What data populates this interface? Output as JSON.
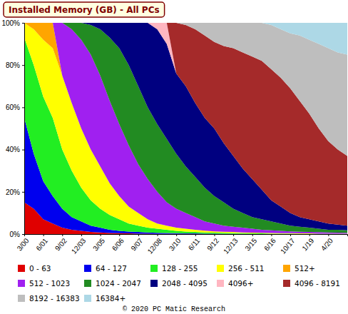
{
  "chart_data": {
    "type": "area",
    "stacked": true,
    "title": "Installed Memory (GB) - All PCs",
    "annotations": [
      "© 2020 PC Matic Research"
    ],
    "legend": "bottom",
    "categories": [
      "3/00",
      null,
      "6/01",
      null,
      "9/02",
      null,
      "12/03",
      null,
      "3/05",
      null,
      "6/06",
      null,
      "9/07",
      null,
      "12/08",
      null,
      "3/10",
      null,
      "6/11",
      null,
      "9/12",
      null,
      "12/13",
      null,
      "3/15",
      null,
      "6/16",
      null,
      "10/17",
      null,
      "1/19",
      null,
      "4/20",
      null,
      null
    ],
    "ylim": [
      0,
      100
    ],
    "yticks": [
      {
        "value": 0,
        "label": "0%"
      },
      {
        "value": 20,
        "label": "20%"
      },
      {
        "value": 40,
        "label": "40%"
      },
      {
        "value": 60,
        "label": "60%"
      },
      {
        "value": 80,
        "label": "80%"
      },
      {
        "value": 100,
        "label": "100%"
      }
    ],
    "series": [
      {
        "name": "0 - 63",
        "color": "#e00000",
        "values": [
          15,
          12,
          7,
          5,
          3,
          2,
          1.5,
          1,
          0.8,
          0.5,
          0.4,
          0.3,
          0.2,
          0.2,
          0.1,
          0.1,
          0.1,
          0.1,
          0.1,
          0,
          0,
          0,
          0,
          0,
          0,
          0,
          0,
          0,
          0,
          0,
          0,
          0,
          0,
          0,
          0
        ]
      },
      {
        "name": "64 - 127",
        "color": "#0000ee",
        "values": [
          40,
          26,
          18,
          13,
          9,
          6,
          4.5,
          3,
          2.2,
          1.5,
          1.1,
          0.9,
          0.8,
          0.6,
          0.5,
          0.4,
          0.3,
          0.2,
          0.2,
          0.2,
          0.2,
          0.1,
          0.1,
          0.1,
          0.1,
          0,
          0,
          0,
          0,
          0,
          0,
          0,
          0,
          0,
          0
        ]
      },
      {
        "name": "128 - 255",
        "color": "#22ee22",
        "values": [
          38,
          42,
          40,
          37,
          28,
          22,
          16,
          12,
          9,
          7,
          5.5,
          3.8,
          3,
          2.2,
          1.9,
          1.5,
          1.1,
          0.9,
          0.7,
          0.6,
          0.5,
          0.5,
          0.4,
          0.3,
          0.2,
          0.3,
          0.2,
          0.2,
          0.2,
          0.1,
          0.1,
          0.1,
          0.1,
          0.1,
          0.1
        ]
      },
      {
        "name": "256 - 511",
        "color": "#ffff00",
        "values": [
          7,
          17,
          27,
          33,
          35,
          32,
          28,
          24,
          20,
          15,
          11,
          8,
          6,
          4,
          2.5,
          2,
          1.5,
          1.3,
          1,
          0.8,
          0.6,
          0.5,
          0.5,
          0.4,
          0.4,
          0.3,
          0.3,
          0.2,
          0.2,
          0.2,
          0.2,
          0.1,
          0.1,
          0.1,
          0.1
        ]
      },
      {
        "name": "512+",
        "color": "#ffa500",
        "values": [
          0,
          3,
          8,
          12,
          0,
          0,
          0,
          0,
          0,
          0,
          0,
          0,
          0,
          0,
          0,
          0,
          0,
          0,
          0,
          0,
          0,
          0,
          0,
          0,
          0,
          0,
          0,
          0,
          0,
          0,
          0,
          0,
          0,
          0,
          0
        ]
      },
      {
        "name": "512 - 1023",
        "color": "#a020f0",
        "values": [
          0,
          0,
          0,
          0,
          25,
          35,
          42,
          45,
          43,
          39,
          34,
          29,
          23,
          19,
          15,
          11,
          9,
          7.5,
          6,
          4.4,
          3.7,
          2.9,
          2.5,
          2.2,
          1.8,
          1.4,
          1.3,
          1.1,
          0.9,
          0.8,
          0.7,
          0.7,
          0.6,
          0.5,
          0.4
        ]
      },
      {
        "name": "1024 - 2047",
        "color": "#228b22",
        "values": [
          0,
          0,
          0,
          0,
          0,
          3,
          8,
          14,
          22,
          30,
          36,
          38,
          37,
          34,
          32,
          30,
          26,
          22,
          19,
          16,
          13,
          11,
          8.5,
          7,
          5.5,
          5,
          4.2,
          3.5,
          2.7,
          2.4,
          2,
          1.6,
          1.2,
          1.3,
          1.2
        ]
      },
      {
        "name": "2048 - 4095",
        "color": "#000080",
        "values": [
          0,
          0,
          0,
          0,
          0,
          0,
          0,
          1,
          3,
          7,
          12,
          20,
          30,
          40,
          45,
          45,
          38,
          38,
          35,
          33,
          32,
          28,
          25,
          21,
          18,
          14,
          10,
          8,
          6,
          4.5,
          4,
          3.5,
          3,
          2.5,
          2.2
        ]
      },
      {
        "name": "4096+",
        "color": "#ffb6c1",
        "values": [
          0,
          0,
          0,
          0,
          0,
          0,
          0,
          0,
          0,
          0,
          0,
          0,
          0,
          0,
          3,
          10,
          0,
          0,
          0,
          0,
          0,
          0,
          0,
          0,
          0,
          0,
          0,
          0,
          0,
          0,
          0,
          0,
          0,
          0,
          0
        ]
      },
      {
        "name": "4096 - 8191",
        "color": "#a52a2a",
        "values": [
          0,
          0,
          0,
          0,
          0,
          0,
          0,
          0,
          0,
          0,
          0,
          0,
          0,
          0,
          0,
          0,
          24,
          29,
          35,
          39,
          41,
          46,
          51,
          55,
          58,
          61,
          62,
          61,
          59,
          55,
          50,
          44,
          39,
          35.5,
          33
        ]
      },
      {
        "name": "8192 - 16383",
        "color": "#bebebe",
        "values": [
          0,
          0,
          0,
          0,
          0,
          0,
          0,
          0,
          0,
          0,
          0,
          0,
          0,
          0,
          0,
          0,
          0,
          1,
          3,
          6,
          9,
          11,
          12,
          14,
          16,
          18,
          21,
          23,
          26,
          31,
          35,
          40,
          44,
          46,
          48
        ]
      },
      {
        "name": "16384+",
        "color": "#add8e6",
        "values": [
          0,
          0,
          0,
          0,
          0,
          0,
          0,
          0,
          0,
          0,
          0,
          0,
          0,
          0,
          0,
          0,
          0,
          0,
          0,
          0,
          0,
          0,
          0,
          0,
          0,
          0,
          1,
          3,
          5,
          6,
          8,
          10,
          12,
          14,
          15
        ]
      }
    ]
  }
}
